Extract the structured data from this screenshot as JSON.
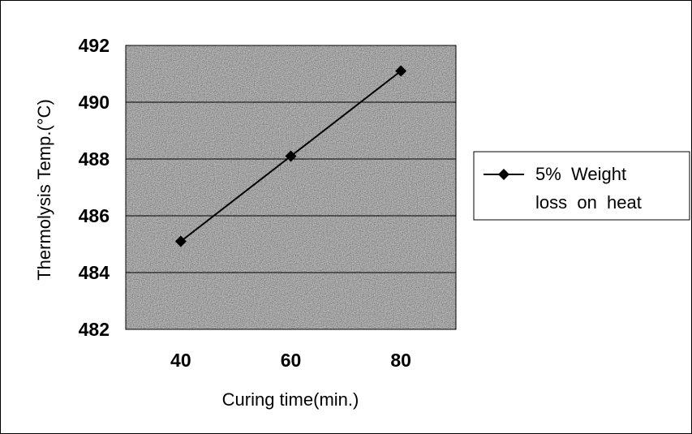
{
  "chart_data": {
    "type": "line",
    "title": "",
    "xlabel": "Curing time(min.)",
    "ylabel": "Thermolysis Temp.(°C)",
    "x": [
      40,
      60,
      80
    ],
    "x_tick_labels": [
      "40",
      "60",
      "80"
    ],
    "y_tick_labels": [
      "492",
      "490",
      "488",
      "486",
      "484",
      "482"
    ],
    "ylim": [
      482,
      492
    ],
    "grid": "horizontal",
    "legend_position": "right",
    "series": [
      {
        "name": "5% Weight\nloss on heat",
        "values": [
          485.1,
          488.1,
          491.1
        ],
        "color": "#000000",
        "marker": "diamond"
      }
    ]
  },
  "legend": {
    "line1": "5%  Weight",
    "line2": "loss  on  heat"
  },
  "colors": {
    "plot_background": "#8a8a8a",
    "gridline": "#000000",
    "line": "#000000"
  }
}
